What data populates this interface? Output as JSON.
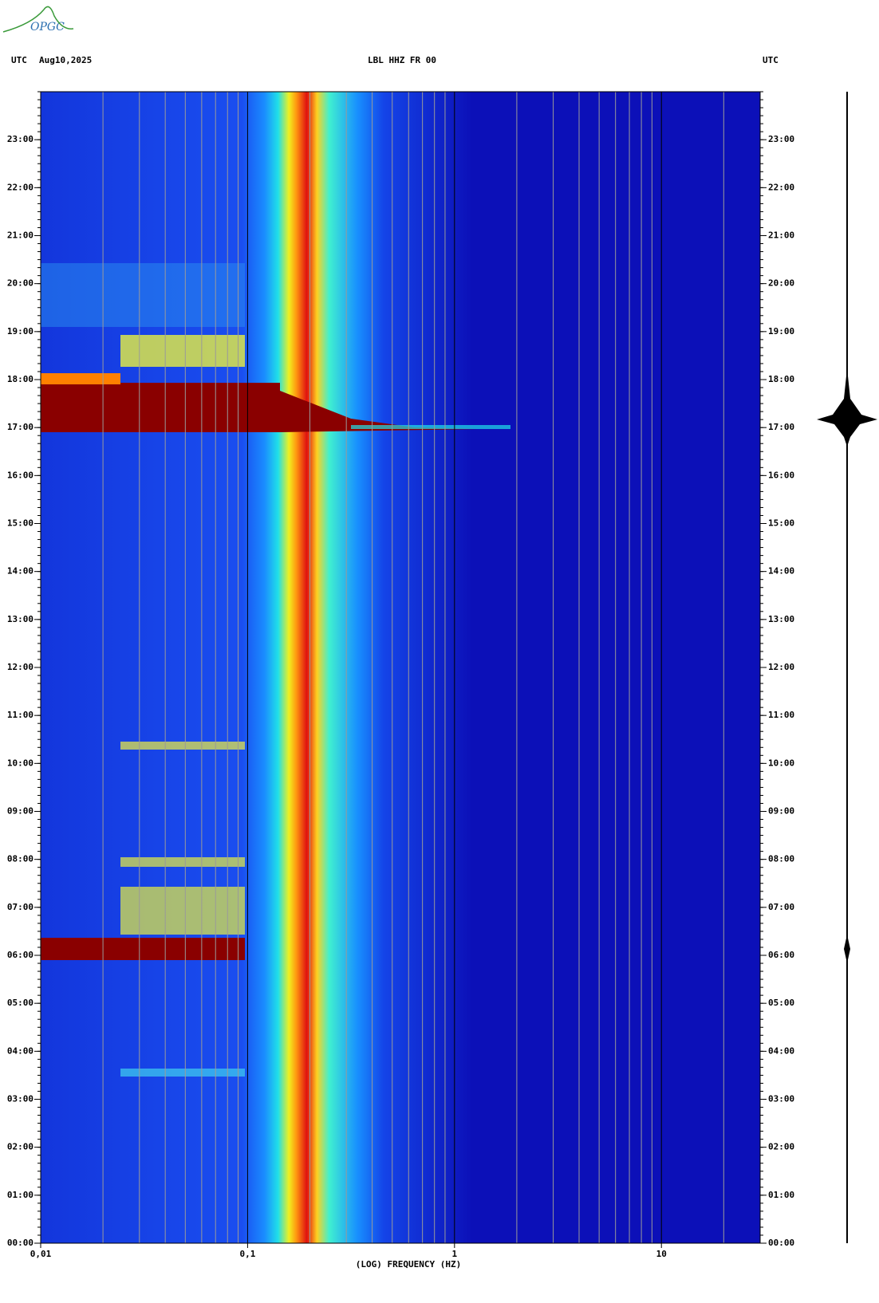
{
  "logo": "OPGC",
  "chart_data": {
    "type": "spectrogram",
    "header_left": "UTC",
    "date": "Aug10,2025",
    "title": "LBL HHZ FR 00",
    "header_right": "UTC",
    "xlabel": "(LOG) FREQUENCY (HZ)",
    "log_x": true,
    "xlim": [
      0.01,
      30
    ],
    "xticks": [
      {
        "value": 0.01,
        "label": "0,01"
      },
      {
        "value": 0.1,
        "label": "0,1"
      },
      1,
      10
    ],
    "ylim": [
      0,
      24
    ],
    "yticks": [
      {
        "value": 0,
        "label": "00:00"
      },
      {
        "value": 1,
        "label": "01:00"
      },
      {
        "value": 2,
        "label": "02:00"
      },
      {
        "value": 3,
        "label": "03:00"
      },
      {
        "value": 4,
        "label": "04:00"
      },
      {
        "value": 5,
        "label": "05:00"
      },
      {
        "value": 6,
        "label": "06:00"
      },
      {
        "value": 7,
        "label": "07:00"
      },
      {
        "value": 8,
        "label": "08:00"
      },
      {
        "value": 9,
        "label": "09:00"
      },
      {
        "value": 10,
        "label": "10:00"
      },
      {
        "value": 11,
        "label": "11:00"
      },
      {
        "value": 12,
        "label": "12:00"
      },
      {
        "value": 13,
        "label": "13:00"
      },
      {
        "value": 14,
        "label": "14:00"
      },
      {
        "value": 15,
        "label": "15:00"
      },
      {
        "value": 16,
        "label": "16:00"
      },
      {
        "value": 17,
        "label": "17:00"
      },
      {
        "value": 18,
        "label": "18:00"
      },
      {
        "value": 19,
        "label": "19:00"
      },
      {
        "value": 20,
        "label": "20:00"
      },
      {
        "value": 21,
        "label": "21:00"
      },
      {
        "value": 22,
        "label": "22:00"
      },
      {
        "value": 23,
        "label": "23:00"
      }
    ]
  }
}
